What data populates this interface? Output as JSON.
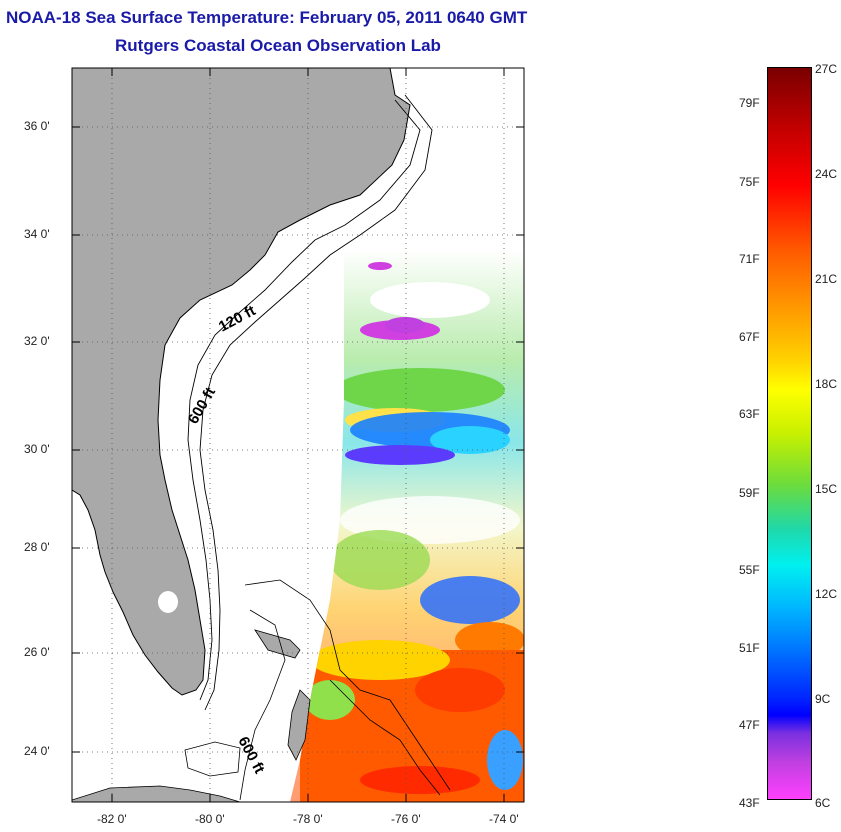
{
  "header": {
    "title": "NOAA-18 Sea Surface Temperature:  February 05, 2011 0640 GMT",
    "subtitle": "Rutgers Coastal Ocean Observation Lab"
  },
  "map": {
    "lat_labels": [
      "36 0'",
      "34 0'",
      "32 0'",
      "30 0'",
      "28 0'",
      "26 0'",
      "24 0'"
    ],
    "lon_labels": [
      "-82 0'",
      "-80 0'",
      "-78 0'",
      "-76 0'",
      "-74 0'"
    ],
    "contour_labels": [
      "120 ft",
      "600 ft",
      "600 ft"
    ],
    "colors": {
      "land": "#a9a9a9",
      "ocean_no_data": "#ffffff",
      "grid": "#555555"
    }
  },
  "colorbar": {
    "fahrenheit_labels": [
      "79F",
      "75F",
      "71F",
      "67F",
      "63F",
      "59F",
      "55F",
      "51F",
      "47F",
      "43F"
    ],
    "celsius_labels": [
      "27C",
      "24C",
      "21C",
      "18C",
      "15C",
      "12C",
      "9C",
      "6C"
    ],
    "min": "6C",
    "max": "27C"
  }
}
